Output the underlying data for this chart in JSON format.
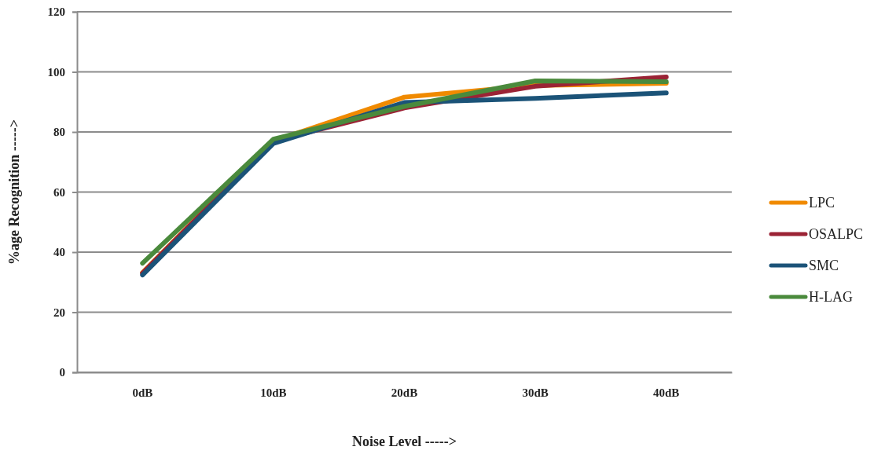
{
  "chart_data": {
    "type": "line",
    "xlabel": "Noise Level ----->",
    "ylabel": "%age Recognition  ----->",
    "categories": [
      "0dB",
      "10dB",
      "20dB",
      "30dB",
      "40dB"
    ],
    "series": [
      {
        "name": "LPC",
        "color": "#f08a00",
        "values": [
          33.2,
          77,
          91.6,
          95.5,
          96.2
        ]
      },
      {
        "name": "OSALPC",
        "color": "#9b2335",
        "values": [
          33,
          77,
          88,
          95.2,
          98.3
        ]
      },
      {
        "name": "SMC",
        "color": "#1b5378",
        "values": [
          32.4,
          76.2,
          89.8,
          91.2,
          93
        ]
      },
      {
        "name": "H-LAG",
        "color": "#4a8a3c",
        "values": [
          36.3,
          77.6,
          88.5,
          97,
          96.7
        ]
      }
    ],
    "ylim": [
      0,
      120
    ],
    "yticks": [
      0,
      20,
      40,
      60,
      80,
      100,
      120
    ],
    "grid": "y",
    "legend": "right",
    "marker": "none",
    "line_style": "solid"
  }
}
